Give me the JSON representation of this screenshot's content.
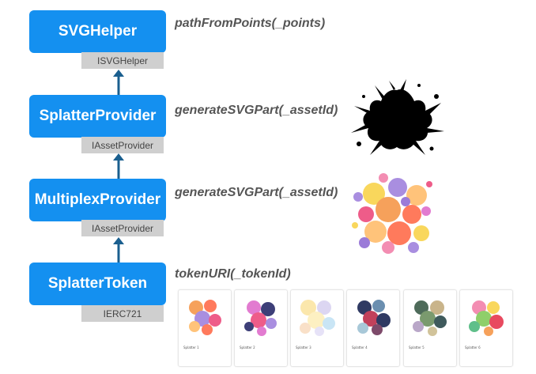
{
  "nodes": [
    {
      "id": "svg-helper",
      "label": "SVGHelper",
      "interface": "ISVGHelper",
      "method": "pathFromPoints(_points)"
    },
    {
      "id": "splatter-provider",
      "label": "SplatterProvider",
      "interface": "IAssetProvider",
      "method": "generateSVGPart(_assetId)"
    },
    {
      "id": "multiplex-provider",
      "label": "MultiplexProvider",
      "interface": "IAssetProvider",
      "method": "generateSVGPart(_assetId)"
    },
    {
      "id": "splatter-token",
      "label": "SplatterToken",
      "interface": "IERC721",
      "method": "tokenURI(_tokenId)"
    }
  ],
  "edges": [
    {
      "from": "splatter-provider",
      "to": "svg-helper"
    },
    {
      "from": "multiplex-provider",
      "to": "splatter-provider"
    },
    {
      "from": "splatter-token",
      "to": "multiplex-provider"
    }
  ],
  "token_cards": [
    {
      "label": "Splatter 1"
    },
    {
      "label": "Splatter 2"
    },
    {
      "label": "Splatter 3"
    },
    {
      "label": "Splatter 4"
    },
    {
      "label": "Splatter 5"
    },
    {
      "label": "Splatter 6"
    }
  ],
  "colors": {
    "box": "#1490f0",
    "tag": "#cfcfcf",
    "arrow": "#1a5f8f",
    "splat_black": "#000000"
  },
  "palette": [
    "#f6a15b",
    "#ff7a5c",
    "#a98ee0",
    "#e27bd0",
    "#f9d75c",
    "#ffc37a",
    "#ee5c89",
    "#9b7bd8",
    "#f38db2"
  ]
}
